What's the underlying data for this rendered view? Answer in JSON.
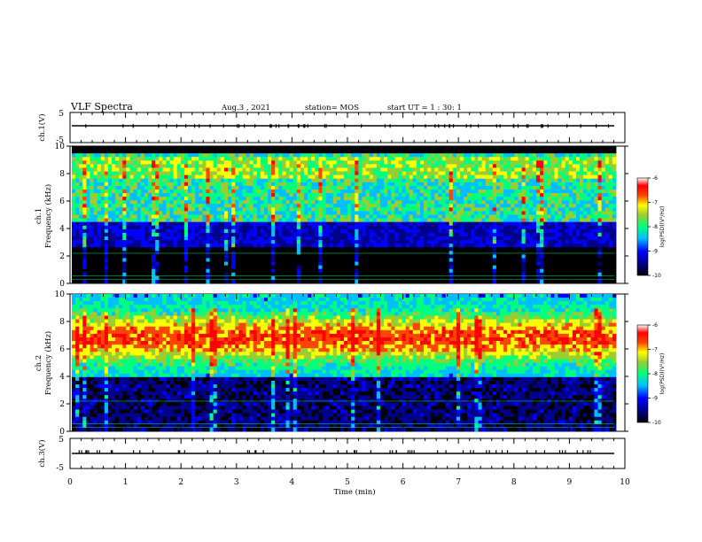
{
  "header": {
    "title": "VLF Spectra",
    "date": "Aug.3 , 2021",
    "station": "station= MOS",
    "start": "start UT = 1 : 30: 1"
  },
  "chart_data": [
    {
      "type": "line",
      "title": "",
      "ylabel": "ch.1(V)",
      "ylim": [
        -5,
        5
      ],
      "yticks": [
        "5",
        "-5"
      ],
      "xlim": [
        0,
        10
      ],
      "series": [
        {
          "values": [
            0,
            0
          ]
        }
      ]
    },
    {
      "type": "heatmap",
      "title": "",
      "ylabel_top": "ch.1",
      "ylabel": "Frequency (kHz)",
      "xlim": [
        0,
        10
      ],
      "ylim": [
        0,
        10
      ],
      "yticks": [
        "0",
        "2",
        "4",
        "6",
        "8",
        "10"
      ],
      "colorbar": {
        "label": "log(PSD)(V²/Hz)",
        "range": [
          -10,
          -6
        ],
        "ticks": [
          "-6",
          "-7",
          "-8",
          "-9",
          "-10"
        ]
      },
      "band_limit_khz": 9.5
    },
    {
      "type": "heatmap",
      "title": "",
      "ylabel_top": "ch.2",
      "ylabel": "Frequency (kHz)",
      "xlim": [
        0,
        10
      ],
      "ylim": [
        0,
        10
      ],
      "yticks": [
        "0",
        "2",
        "4",
        "6",
        "8",
        "10"
      ],
      "colorbar": {
        "label": "log(PSD)(V²/Hz)",
        "range": [
          -10,
          -6
        ],
        "ticks": [
          "-6",
          "-7",
          "-8",
          "-9",
          "-10"
        ]
      },
      "band_limit_khz": 10
    },
    {
      "type": "line",
      "title": "",
      "ylabel": "ch.3(V)",
      "ylim": [
        -5,
        5
      ],
      "yticks": [
        "5",
        "-5"
      ],
      "xlim": [
        0,
        10
      ],
      "xlabel": "Time (min)",
      "xticks": [
        "0",
        "1",
        "2",
        "3",
        "4",
        "5",
        "6",
        "7",
        "8",
        "9",
        "10"
      ],
      "series": [
        {
          "values": [
            0,
            0
          ]
        }
      ]
    }
  ],
  "colors": {
    "scale": [
      "#000000",
      "#00008b",
      "#0000ff",
      "#00bfff",
      "#00ff7f",
      "#9acd32",
      "#ffff00",
      "#ff4500",
      "#ff0000",
      "#ffffff"
    ]
  }
}
